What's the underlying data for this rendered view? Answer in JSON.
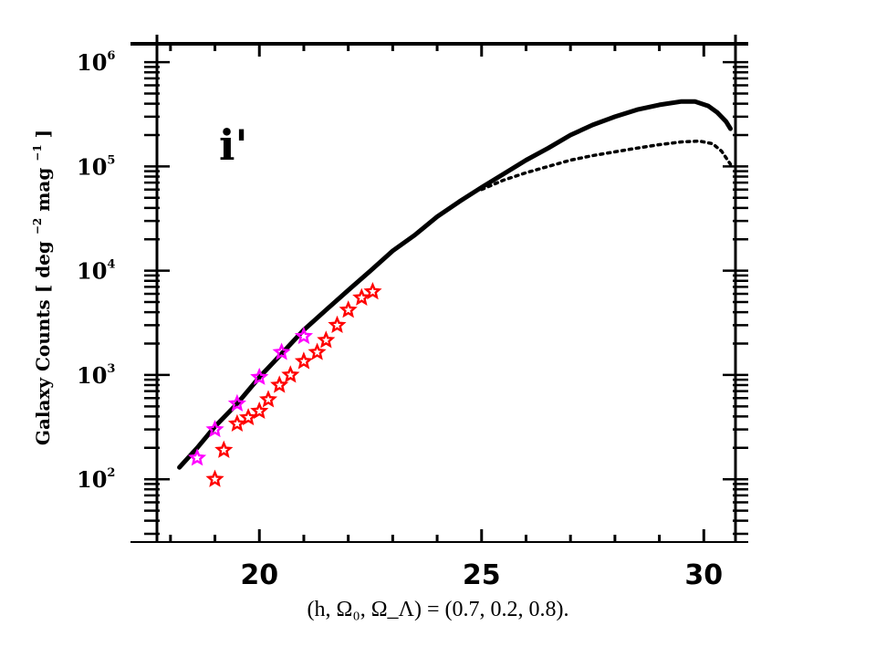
{
  "chart_data": {
    "type": "line",
    "band_label": "i'",
    "ylabel": {
      "prefix": "Galaxy Counts [ deg",
      "sup1": "−2",
      "mid": " mag",
      "sup2": "−1",
      "suffix": "]"
    },
    "xlim": [
      17.1,
      31.0
    ],
    "ylog": true,
    "ylim": [
      25,
      1500000
    ],
    "xticks": [
      20,
      25,
      30
    ],
    "yticks": [
      {
        "value": 100,
        "base": "10",
        "exp": "2"
      },
      {
        "value": 1000,
        "base": "10",
        "exp": "3"
      },
      {
        "value": 10000,
        "base": "10",
        "exp": "4"
      },
      {
        "value": 100000,
        "base": "10",
        "exp": "5"
      },
      {
        "value": 1000000,
        "base": "10",
        "exp": "6"
      }
    ],
    "series": [
      {
        "style": "solid",
        "color": "#000000",
        "x": [
          18.2,
          18.6,
          19.0,
          19.5,
          20.0,
          20.5,
          21.0,
          21.5,
          22.0,
          22.5,
          23.0,
          23.5,
          24.0,
          24.5,
          25.0,
          25.5,
          26.0,
          26.5,
          27.0,
          27.5,
          28.0,
          28.5,
          29.0,
          29.5,
          29.8,
          30.1,
          30.3,
          30.5,
          30.6
        ],
        "y": [
          130,
          200,
          320,
          530,
          950,
          1600,
          2700,
          4200,
          6500,
          10000,
          15500,
          22000,
          33000,
          46000,
          63000,
          85000,
          115000,
          150000,
          200000,
          250000,
          300000,
          350000,
          390000,
          420000,
          420000,
          380000,
          330000,
          270000,
          230000
        ]
      },
      {
        "style": "dotted",
        "color": "#000000",
        "x": [
          25.0,
          25.5,
          26.0,
          26.5,
          27.0,
          27.5,
          28.0,
          28.5,
          29.0,
          29.5,
          29.9,
          30.2,
          30.4,
          30.6
        ],
        "y": [
          60000,
          74000,
          87000,
          100000,
          115000,
          127000,
          138000,
          150000,
          162000,
          172000,
          175000,
          165000,
          140000,
          105000
        ]
      },
      {
        "style": "stars",
        "color": "#ff00ff",
        "x": [
          18.6,
          19.0,
          19.5,
          20.0,
          20.5,
          21.0
        ],
        "y": [
          160,
          300,
          530,
          950,
          1650,
          2350
        ]
      },
      {
        "style": "stars",
        "color": "#ff0000",
        "x": [
          19.0,
          19.2,
          19.5,
          19.75,
          20.0,
          20.2,
          20.45,
          20.7,
          21.0,
          21.3,
          21.5,
          21.75,
          22.0,
          22.3,
          22.55
        ],
        "y": [
          100,
          190,
          340,
          390,
          450,
          580,
          800,
          1000,
          1350,
          1650,
          2150,
          3000,
          4200,
          5500,
          6300
        ]
      }
    ]
  },
  "caption": "(h, Ω₀, Ω_Λ) = (0.7,  0.2,  0.8)."
}
